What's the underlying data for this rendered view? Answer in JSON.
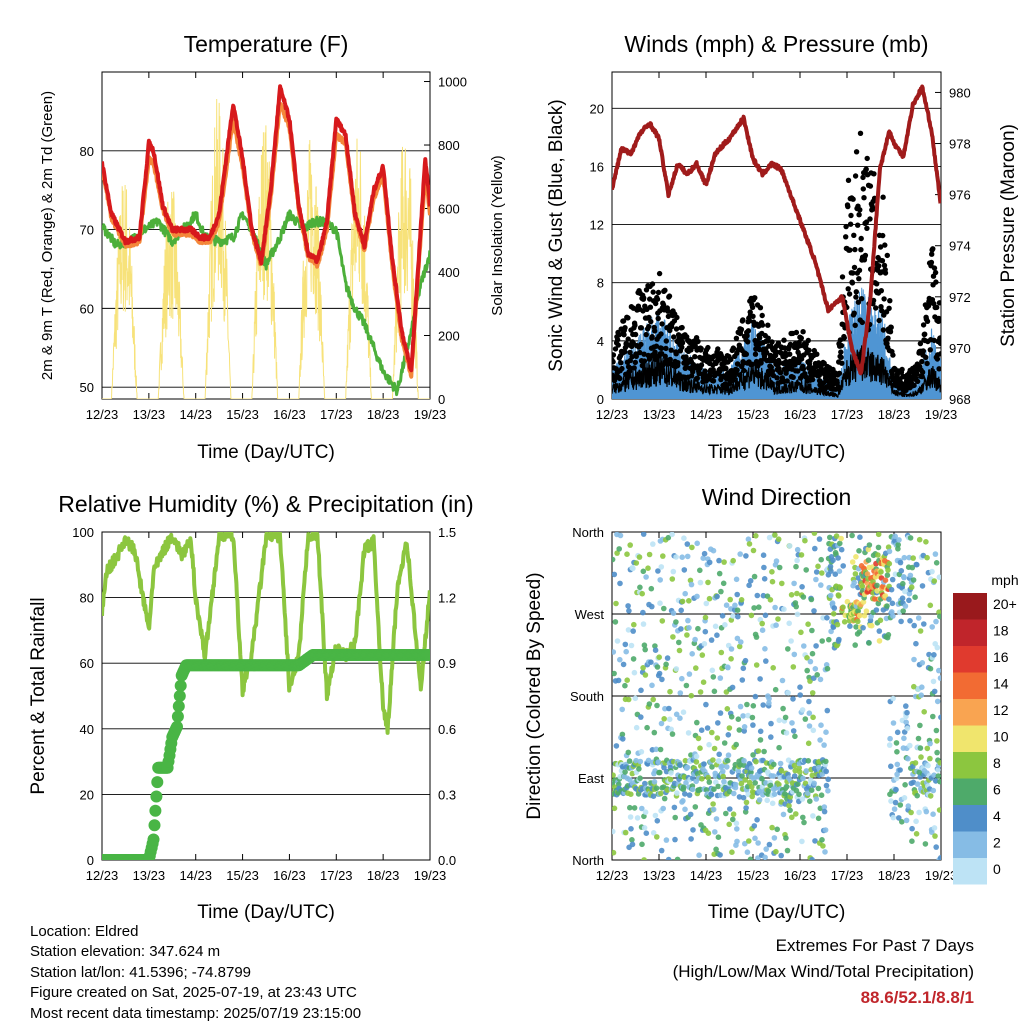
{
  "x_tick_labels": [
    "12/23",
    "13/23",
    "14/23",
    "15/23",
    "16/23",
    "17/23",
    "18/23",
    "19/23"
  ],
  "x_axis_label": "Time (Day/UTC)",
  "colors": {
    "temp_2m": "#d7191c",
    "temp_9m": "#f4873a",
    "dewpoint": "#4caf3a",
    "solar": "#f7e27a",
    "wind": "#4f95d3",
    "gust": "#000000",
    "pressure": "#a01b1b",
    "rh": "#8cc63f",
    "precip": "#49b545"
  },
  "chart_data": [
    {
      "type": "line",
      "title": "Temperature (F)",
      "ylabel": "2m & 9m T (Red, Orange) & 2m Td (Green)",
      "y2label": "Solar Insolation (Yellow)",
      "ylim": [
        48.5,
        90
      ],
      "y2lim": [
        0,
        1030
      ],
      "yticks": [
        50,
        60,
        70,
        80
      ],
      "y2ticks": [
        0,
        200,
        400,
        600,
        800,
        1000
      ],
      "series": [
        {
          "x": [
            12.0,
            12.2,
            12.5,
            12.8,
            13.0,
            13.1,
            13.3,
            13.5,
            13.7,
            13.9,
            14.1,
            14.3,
            14.5,
            14.8,
            15.0,
            15.2,
            15.4,
            15.6,
            15.8,
            16.0,
            16.2,
            16.4,
            16.6,
            16.8,
            17.0,
            17.2,
            17.4,
            17.6,
            17.8,
            18.0,
            18.2,
            18.4,
            18.6,
            18.8,
            18.9,
            19.0
          ],
          "values": [
            78.5,
            72,
            68.5,
            69,
            81,
            80,
            73,
            70,
            70,
            70,
            69,
            69,
            72,
            86,
            79,
            70,
            66,
            75,
            88,
            84,
            73,
            67,
            66,
            71,
            84,
            82,
            72,
            68,
            75,
            78,
            66,
            57,
            52,
            70,
            79,
            73
          ]
        },
        {
          "x": [
            12.0,
            12.2,
            12.5,
            12.8,
            13.0,
            13.1,
            13.3,
            13.5,
            13.7,
            13.9,
            14.1,
            14.3,
            14.5,
            14.8,
            15.0,
            15.2,
            15.4,
            15.6,
            15.8,
            16.0,
            16.2,
            16.4,
            16.6,
            16.8,
            17.0,
            17.2,
            17.4,
            17.6,
            17.8,
            18.0,
            18.2,
            18.4,
            18.6,
            18.8,
            18.9,
            19.0
          ],
          "values": [
            78,
            71.5,
            68,
            68.5,
            79,
            78.5,
            72.5,
            69.5,
            69.5,
            69.5,
            68.5,
            68.5,
            71,
            84,
            78,
            69.5,
            65.5,
            74,
            86,
            83,
            72.5,
            66.5,
            65.5,
            70,
            82,
            81,
            71.5,
            67.5,
            74,
            77,
            65,
            56,
            51.5,
            69,
            77,
            72
          ]
        },
        {
          "x": [
            12.0,
            12.3,
            12.6,
            12.9,
            13.2,
            13.5,
            13.8,
            14.0,
            14.2,
            14.5,
            14.8,
            15.0,
            15.2,
            15.5,
            15.8,
            16.0,
            16.3,
            16.5,
            16.7,
            17.0,
            17.2,
            17.4,
            17.6,
            17.8,
            18.0,
            18.3,
            18.6,
            18.8,
            19.0
          ],
          "values": [
            70.5,
            68,
            68.5,
            70,
            71,
            68.5,
            70.5,
            72,
            69,
            68.5,
            69,
            72,
            70,
            65.5,
            69,
            72,
            70,
            71,
            71,
            70,
            63,
            60,
            58,
            55,
            52,
            49.5,
            57,
            63,
            67
          ]
        },
        {
          "x": [
            12.0,
            13.0,
            13.5,
            14.0,
            14.5,
            15.0,
            15.5,
            16.0,
            16.5,
            17.0,
            17.5,
            18.0,
            18.5,
            19.0
          ],
          "values": [
            0,
            720,
            120,
            690,
            100,
            960,
            150,
            900,
            130,
            860,
            140,
            870,
            120,
            880
          ]
        }
      ]
    },
    {
      "type": "scatter",
      "title": "Winds (mph) & Pressure (mb)",
      "ylabel": "Sonic Wind & Gust (Blue, Black)",
      "y2label": "Station Pressure (Maroon)",
      "ylim": [
        0,
        22.5
      ],
      "y2lim": [
        968,
        980.8
      ],
      "yticks": [
        0,
        4,
        8,
        12,
        16,
        20
      ],
      "y2ticks": [
        968,
        970,
        972,
        974,
        976,
        978,
        980
      ],
      "series": [
        {
          "x": [
            12.0,
            12.5,
            13.0,
            13.5,
            14.0,
            14.5,
            15.0,
            15.5,
            16.0,
            16.5,
            16.8,
            17.0,
            17.3,
            17.5,
            17.8,
            18.0,
            18.3,
            18.5,
            18.8,
            19.0
          ],
          "values": [
            1.5,
            3,
            4.5,
            2.5,
            1.5,
            1.5,
            4,
            1.5,
            2,
            1,
            0.5,
            4,
            5.5,
            5,
            4,
            1,
            0.5,
            1,
            3.5,
            2
          ]
        },
        {
          "x": [
            12.0,
            12.5,
            13.0,
            13.5,
            14.0,
            14.5,
            15.0,
            15.5,
            16.0,
            16.5,
            16.8,
            17.0,
            17.3,
            17.5,
            17.8,
            18.0,
            18.3,
            18.5,
            18.8,
            19.0
          ],
          "values": [
            3,
            6,
            7,
            4,
            3,
            2.5,
            6,
            3,
            4,
            2,
            1.5,
            12,
            15,
            13,
            11,
            2,
            1.5,
            2,
            9,
            5
          ]
        },
        {
          "x": [
            12.0,
            12.2,
            12.4,
            12.6,
            12.8,
            13.0,
            13.2,
            13.4,
            13.6,
            13.8,
            14.0,
            14.2,
            14.5,
            14.8,
            15.0,
            15.2,
            15.4,
            15.6,
            15.8,
            16.0,
            16.3,
            16.6,
            16.9,
            17.1,
            17.3,
            17.5,
            17.7,
            17.9,
            18.0,
            18.2,
            18.4,
            18.6,
            18.8,
            18.9,
            19.0
          ],
          "values": [
            976.2,
            977.8,
            977.6,
            978.4,
            978.8,
            978.2,
            976.0,
            977.2,
            976.8,
            977.2,
            976.4,
            977.6,
            978.2,
            979.0,
            977.4,
            976.8,
            977.2,
            977.0,
            976.0,
            975.0,
            973.5,
            971.5,
            972.0,
            970.0,
            969.0,
            972.0,
            977.0,
            978.5,
            978.0,
            977.5,
            979.5,
            980.2,
            978.5,
            977.0,
            975.5
          ]
        }
      ]
    },
    {
      "type": "line",
      "title": "Relative Humidity (%) & Precipitation (in)",
      "ylabel": "Percent & Total Rainfall",
      "ylim": [
        0,
        100
      ],
      "y2lim": [
        0,
        1.6
      ],
      "yticks": [
        0,
        20,
        40,
        60,
        80,
        100
      ],
      "y2ticks": [
        "0.0",
        "0.3",
        "0.6",
        "0.9",
        "1.2",
        "1.5"
      ],
      "series": [
        {
          "x": [
            12.0,
            12.1,
            12.3,
            12.5,
            12.7,
            12.9,
            13.0,
            13.1,
            13.3,
            13.5,
            13.7,
            13.9,
            14.0,
            14.2,
            14.5,
            14.8,
            15.0,
            15.2,
            15.5,
            15.8,
            16.0,
            16.2,
            16.4,
            16.6,
            16.8,
            17.0,
            17.2,
            17.4,
            17.6,
            17.8,
            18.0,
            18.1,
            18.3,
            18.5,
            18.8,
            19.0
          ],
          "values": [
            76,
            88,
            92,
            98,
            94,
            78,
            70,
            88,
            94,
            99,
            93,
            97,
            80,
            62,
            99,
            99,
            52,
            63,
            98,
            99,
            52,
            62,
            99,
            99,
            50,
            65,
            62,
            66,
            95,
            97,
            46,
            40,
            82,
            98,
            52,
            82
          ]
        },
        {
          "x": [
            12.0,
            12.5,
            13.0,
            13.1,
            13.2,
            13.3,
            13.4,
            13.5,
            13.6,
            13.7,
            13.8,
            13.9,
            14.0,
            14.5,
            15.0,
            15.5,
            16.0,
            16.2,
            16.5,
            17.0,
            18.0,
            19.0
          ],
          "values": [
            0,
            0,
            0,
            0.1,
            0.45,
            0.45,
            0.45,
            0.6,
            0.65,
            0.9,
            0.95,
            0.95,
            0.95,
            0.95,
            0.95,
            0.95,
            0.95,
            0.95,
            1.0,
            1.0,
            1.0,
            1.0
          ]
        }
      ]
    },
    {
      "type": "scatter",
      "title": "Wind Direction",
      "ylabel": "Direction (Colored By Speed)",
      "yticks": [
        "North",
        "East",
        "South",
        "West",
        "North"
      ],
      "legend_title": "mph",
      "legend_labels": [
        "20+",
        "18",
        "16",
        "14",
        "12",
        "10",
        "8",
        "6",
        "4",
        "2",
        "0"
      ],
      "legend_colors": [
        "#99191c",
        "#c0252b",
        "#e03a2e",
        "#f26b33",
        "#f9a451",
        "#f0e56d",
        "#8cc63f",
        "#4eaa6a",
        "#4f8ec9",
        "#86bce5",
        "#bde3f5"
      ]
    }
  ],
  "info": {
    "location": "Location: Eldred",
    "elevation": "Station elevation: 347.624 m",
    "latlon": "Station lat/lon: 41.5396; -74.8799",
    "created": "Figure created on Sat, 2025-07-19, at 23:43 UTC",
    "recent": "Most recent data timestamp: 2025/07/19 23:15:00"
  },
  "extremes": {
    "title": "Extremes For Past 7 Days",
    "subtitle": "(High/Low/Max Wind/Total Precipitation)",
    "values": "88.6/52.1/8.8/1"
  }
}
